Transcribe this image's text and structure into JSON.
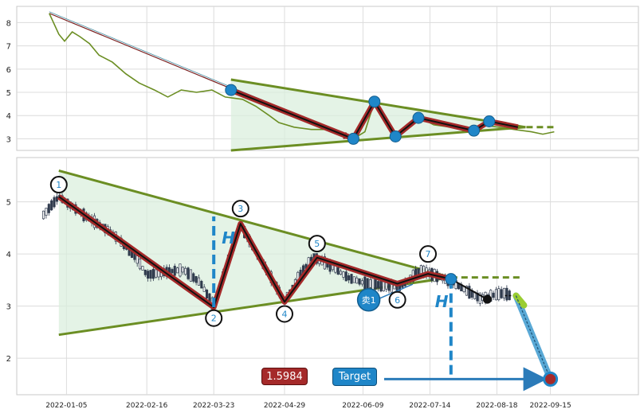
{
  "chart_data": [
    {
      "type": "line",
      "panel": "overview",
      "ylim": [
        2.5,
        8.7
      ],
      "yticks": [
        3,
        4,
        5,
        6,
        7,
        8
      ],
      "grid": true,
      "series": [
        {
          "name": "",
          "color": "#6b8e23",
          "points": [
            [
              "2021-12-27",
              8.4
            ],
            [
              "2022-01-01",
              7.5
            ],
            [
              "2022-01-04",
              7.2
            ],
            [
              "2022-01-08",
              7.6
            ],
            [
              "2022-01-12",
              7.4
            ],
            [
              "2022-01-17",
              7.1
            ],
            [
              "2022-01-22",
              6.6
            ],
            [
              "2022-01-29",
              6.3
            ],
            [
              "2022-02-05",
              5.8
            ],
            [
              "2022-02-12",
              5.4
            ],
            [
              "2022-02-20",
              5.1
            ],
            [
              "2022-02-27",
              4.8
            ],
            [
              "2022-03-06",
              5.1
            ],
            [
              "2022-03-14",
              5.0
            ],
            [
              "2022-03-22",
              5.1
            ],
            [
              "2022-03-29",
              4.8
            ],
            [
              "2022-04-07",
              4.7
            ],
            [
              "2022-04-14",
              4.4
            ],
            [
              "2022-04-21",
              4.0
            ],
            [
              "2022-04-26",
              3.7
            ],
            [
              "2022-05-04",
              3.5
            ],
            [
              "2022-05-13",
              3.4
            ],
            [
              "2022-05-22",
              3.4
            ],
            [
              "2022-05-31",
              3.2
            ],
            [
              "2022-06-04",
              3.0
            ],
            [
              "2022-06-10",
              3.3
            ],
            [
              "2022-06-15",
              4.6
            ],
            [
              "2022-06-19",
              4.0
            ],
            [
              "2022-06-26",
              3.2
            ],
            [
              "2022-07-03",
              3.5
            ],
            [
              "2022-07-09",
              3.9
            ],
            [
              "2022-07-16",
              3.6
            ],
            [
              "2022-07-25",
              3.5
            ],
            [
              "2022-08-04",
              3.4
            ],
            [
              "2022-08-10",
              3.6
            ],
            [
              "2022-08-19",
              3.5
            ],
            [
              "2022-08-27",
              3.4
            ],
            [
              "2022-09-05",
              3.3
            ],
            [
              "2022-09-11",
              3.2
            ],
            [
              "2022-09-17",
              3.3
            ]
          ]
        }
      ],
      "pattern": {
        "upper_line": [
          [
            "2022-04-01",
            5.55
          ],
          [
            "2022-09-02",
            3.5
          ]
        ],
        "lower_line": [
          [
            "2022-04-01",
            2.5
          ],
          [
            "2022-09-02",
            3.5
          ]
        ],
        "extension": [
          [
            "2022-08-28",
            3.5
          ],
          [
            "2022-09-17",
            3.5
          ]
        ],
        "zigzag": [
          [
            "2022-04-01",
            5.1
          ],
          [
            "2022-06-04",
            3.0
          ],
          [
            "2022-06-15",
            4.6
          ],
          [
            "2022-06-26",
            3.1
          ],
          [
            "2022-07-08",
            3.9
          ],
          [
            "2022-08-06",
            3.35
          ],
          [
            "2022-08-14",
            3.75
          ],
          [
            "2022-08-29",
            3.5
          ]
        ],
        "pivots": [
          [
            "2022-04-01",
            5.1
          ],
          [
            "2022-06-04",
            3.0
          ],
          [
            "2022-06-15",
            4.6
          ],
          [
            "2022-06-26",
            3.1
          ],
          [
            "2022-07-08",
            3.9
          ],
          [
            "2022-08-06",
            3.35
          ],
          [
            "2022-08-14",
            3.75
          ]
        ],
        "arrow_lead": [
          [
            "2021-12-27",
            8.4
          ],
          [
            "2022-06-02",
            3.05
          ]
        ]
      }
    },
    {
      "type": "candlestick",
      "panel": "detail",
      "ylim": [
        1.3,
        5.85
      ],
      "yticks": [
        2,
        3,
        4,
        5
      ],
      "xticks": [
        "2022-01-05",
        "2022-02-16",
        "2022-03-23",
        "2022-04-29",
        "2022-06-09",
        "2022-07-14",
        "2022-08-18",
        "2022-09-15"
      ],
      "grid": true,
      "candle_color": "#2f3a4d",
      "price_path": [
        [
          "2021-12-24",
          4.75
        ],
        [
          "2022-01-01",
          5.1
        ],
        [
          "2022-01-14",
          4.75
        ],
        [
          "2022-01-29",
          4.4
        ],
        [
          "2022-02-10",
          3.95
        ],
        [
          "2022-02-16",
          3.6
        ],
        [
          "2022-02-25",
          3.65
        ],
        [
          "2022-03-07",
          3.7
        ],
        [
          "2022-03-16",
          3.45
        ],
        [
          "2022-03-23",
          3.0
        ],
        [
          "2022-03-30",
          3.8
        ],
        [
          "2022-04-06",
          4.55
        ],
        [
          "2022-04-13",
          4.1
        ],
        [
          "2022-04-22",
          3.55
        ],
        [
          "2022-04-29",
          3.1
        ],
        [
          "2022-05-07",
          3.6
        ],
        [
          "2022-05-14",
          3.95
        ],
        [
          "2022-05-24",
          3.75
        ],
        [
          "2022-06-01",
          3.55
        ],
        [
          "2022-06-09",
          3.45
        ],
        [
          "2022-06-19",
          3.4
        ],
        [
          "2022-06-28",
          3.35
        ],
        [
          "2022-07-09",
          3.7
        ],
        [
          "2022-07-19",
          3.55
        ],
        [
          "2022-07-26",
          3.45
        ],
        [
          "2022-08-02",
          3.3
        ],
        [
          "2022-08-09",
          3.15
        ],
        [
          "2022-08-15",
          3.2
        ],
        [
          "2022-08-22",
          3.25
        ],
        [
          "2022-08-25",
          3.2
        ]
      ],
      "pattern": {
        "upper_line": [
          [
            "2022-01-01",
            5.6
          ],
          [
            "2022-07-25",
            3.55
          ]
        ],
        "lower_line": [
          [
            "2022-01-01",
            2.45
          ],
          [
            "2022-07-25",
            3.55
          ]
        ],
        "extension": [
          [
            "2022-07-25",
            3.55
          ],
          [
            "2022-08-31",
            3.55
          ]
        ],
        "zigzag": [
          [
            "2022-01-01",
            5.1
          ],
          [
            "2022-03-23",
            2.98
          ],
          [
            "2022-04-06",
            4.58
          ],
          [
            "2022-04-29",
            3.08
          ],
          [
            "2022-05-16",
            3.93
          ],
          [
            "2022-06-27",
            3.43
          ],
          [
            "2022-07-13",
            3.62
          ],
          [
            "2022-07-25",
            3.52
          ]
        ],
        "pivots": [
          {
            "label": "1",
            "at": [
              "2022-01-01",
              5.1
            ],
            "badge": [
              "2022-01-01",
              5.33
            ]
          },
          {
            "label": "2",
            "at": [
              "2022-03-23",
              2.98
            ],
            "badge": [
              "2022-03-23",
              2.77
            ]
          },
          {
            "label": "3",
            "at": [
              "2022-04-06",
              4.58
            ],
            "badge": [
              "2022-04-06",
              4.87
            ]
          },
          {
            "label": "4",
            "at": [
              "2022-04-29",
              3.08
            ],
            "badge": [
              "2022-04-29",
              2.85
            ]
          },
          {
            "label": "5",
            "at": [
              "2022-05-16",
              3.93
            ],
            "badge": [
              "2022-05-16",
              4.2
            ]
          },
          {
            "label": "6",
            "at": [
              "2022-06-27",
              3.43
            ],
            "badge": [
              "2022-06-27",
              3.12
            ]
          },
          {
            "label": "7",
            "at": [
              "2022-07-13",
              3.62
            ],
            "badge": [
              "2022-07-13",
              4.0
            ]
          }
        ],
        "breakout_point": [
          "2022-07-25",
          3.52
        ],
        "exit_point": [
          "2022-08-13",
          3.13
        ],
        "h_marker_1": {
          "x": "2022-03-23",
          "y_from": 2.98,
          "y_to": 4.72,
          "label": "H"
        },
        "h_marker_2": {
          "x": "2022-07-25",
          "y_from": 3.52,
          "y_to": 1.62,
          "label": "H"
        },
        "projection": {
          "from": [
            "2022-07-25",
            3.52
          ],
          "to": [
            "2022-09-15",
            1.6
          ],
          "bend": [
            "2022-08-28",
            3.2
          ]
        },
        "target_point": [
          "2022-09-15",
          1.6
        ],
        "sell_marker": {
          "label": "卖1",
          "at": [
            "2022-06-12",
            3.12
          ]
        }
      },
      "labels": {
        "price_badge": "1.5984",
        "target_badge": "Target"
      }
    }
  ]
}
